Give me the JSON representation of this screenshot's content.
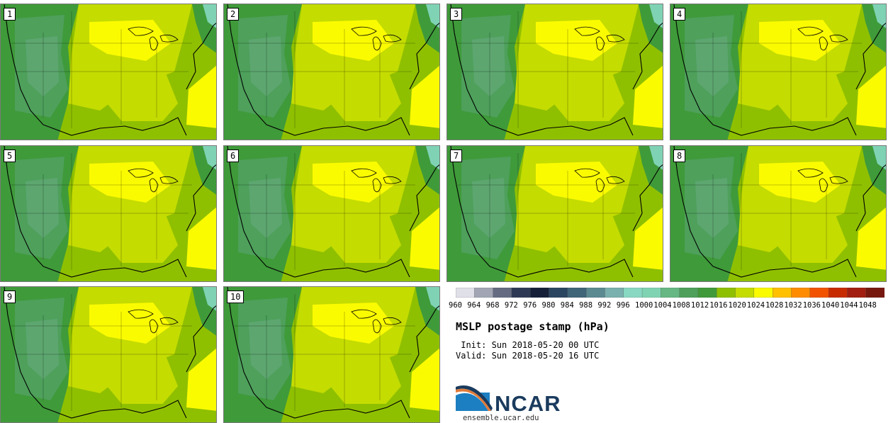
{
  "panels": [
    "1",
    "2",
    "3",
    "4",
    "5",
    "6",
    "7",
    "8",
    "9",
    "10"
  ],
  "colorbar": {
    "levels": [
      "960",
      "964",
      "968",
      "972",
      "976",
      "980",
      "984",
      "988",
      "992",
      "996",
      "1000",
      "1004",
      "1008",
      "1012",
      "1016",
      "1020",
      "1024",
      "1028",
      "1032",
      "1036",
      "1040",
      "1044",
      "1048"
    ],
    "colors": [
      "#e0e0e8",
      "#a2a6b4",
      "#656c82",
      "#2e3a55",
      "#152038",
      "#2a4560",
      "#406478",
      "#5b8a91",
      "#7ab0ad",
      "#88d8c2",
      "#80d3b2",
      "#66b783",
      "#4ea05b",
      "#409a3a",
      "#8fc000",
      "#c4dc00",
      "#fbfb00",
      "#ffc000",
      "#ff8c00",
      "#f25200",
      "#c82a00",
      "#a11e10",
      "#76180e"
    ]
  },
  "title": "MSLP postage stamp (hPa)",
  "init": " Init: Sun 2018-05-20 00 UTC",
  "valid": "Valid: Sun 2018-05-20 16 UTC",
  "logo": {
    "name": "NCAR",
    "url": "ensemble.ucar.edu"
  }
}
